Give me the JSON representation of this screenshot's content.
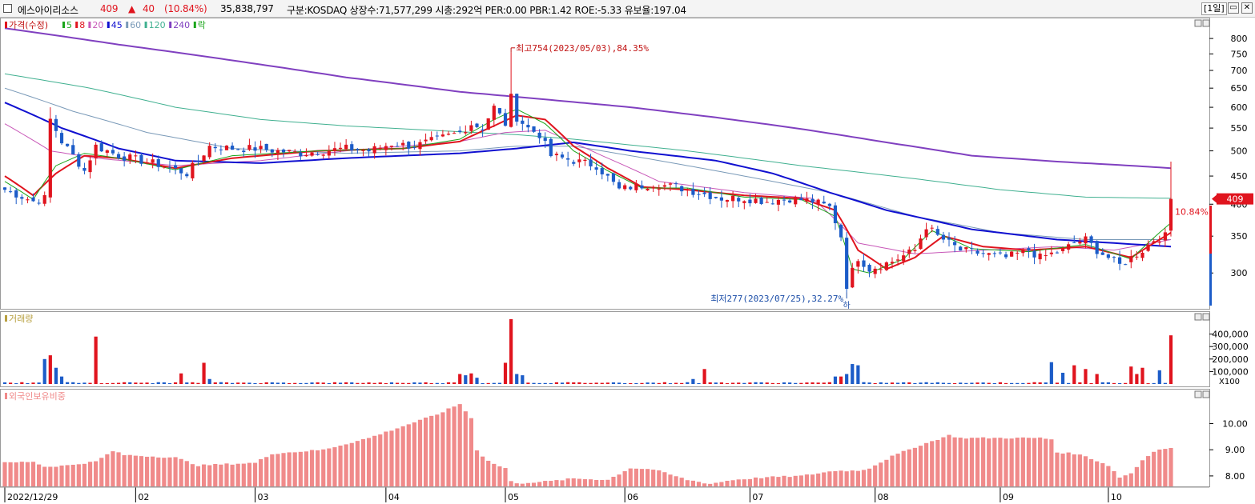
{
  "header": {
    "name": "에스아이리소스",
    "price": "409",
    "arrow": "▲",
    "change": "40",
    "change_pct": "(10.84%)",
    "volume": "35,838,797",
    "info": "구분:KOSDAQ 상장수:71,577,299 시총:292억 PER:0.00 PBR:1.42 ROE:-5.33 유보율:197.04",
    "period": "[1일]",
    "btn_restore": "▭",
    "btn_close": "✕"
  },
  "colors": {
    "up": "#e0141e",
    "down": "#1c5cc8",
    "ma5": "#1aa51a",
    "ma8": "#e0141e",
    "ma20": "#c858b8",
    "ma45": "#1010d0",
    "ma60": "#7a9ab8",
    "ma120": "#40b090",
    "ma240": "#8040c0",
    "foreign": "#f08a8a",
    "header_price": "#e0141e"
  },
  "chart_data": [
    {
      "type": "candlestick",
      "panel": "price",
      "legend": [
        {
          "label": "가격(수정)",
          "color": "#e0141e"
        },
        {
          "label": "5",
          "color": "#1aa51a"
        },
        {
          "label": "8",
          "color": "#e0141e"
        },
        {
          "label": "20",
          "color": "#c858b8"
        },
        {
          "label": "45",
          "color": "#1010d0"
        },
        {
          "label": "60",
          "color": "#7a9ab8"
        },
        {
          "label": "120",
          "color": "#40b090"
        },
        {
          "label": "240",
          "color": "#8040c0"
        },
        {
          "label": "락",
          "color": "#1aa51a"
        }
      ],
      "y_ticks": [
        300,
        350,
        400,
        450,
        500,
        550,
        600,
        650,
        700,
        750,
        800
      ],
      "y_scale": "log",
      "ylim": [
        260,
        850
      ],
      "x_ticks": [
        "2022/12/29",
        "02",
        "03",
        "04",
        "05",
        "06",
        "07",
        "08",
        "09",
        "10"
      ],
      "x_tick_index": [
        0,
        23,
        44,
        67,
        88,
        109,
        131,
        153,
        175,
        194
      ],
      "current_price": "409",
      "current_pct": "10.84%",
      "annotations": {
        "high": {
          "text": "최고754(2023/05/03),84.35%",
          "index": 89,
          "value": 754
        },
        "low": {
          "text": "최저277(2023/07/25),32.27%",
          "index": 148,
          "value": 277
        },
        "low_marker": "하"
      },
      "close_keypoints": [
        [
          0,
          425
        ],
        [
          5,
          405
        ],
        [
          7,
          410
        ],
        [
          8,
          570
        ],
        [
          10,
          520
        ],
        [
          14,
          460
        ],
        [
          16,
          510
        ],
        [
          20,
          490
        ],
        [
          24,
          480
        ],
        [
          28,
          470
        ],
        [
          32,
          455
        ],
        [
          34,
          480
        ],
        [
          36,
          510
        ],
        [
          40,
          505
        ],
        [
          44,
          505
        ],
        [
          48,
          500
        ],
        [
          52,
          495
        ],
        [
          56,
          500
        ],
        [
          60,
          505
        ],
        [
          64,
          500
        ],
        [
          68,
          515
        ],
        [
          72,
          510
        ],
        [
          76,
          525
        ],
        [
          80,
          540
        ],
        [
          82,
          560
        ],
        [
          84,
          550
        ],
        [
          86,
          600
        ],
        [
          88,
          560
        ],
        [
          89,
          625
        ],
        [
          90,
          575
        ],
        [
          92,
          550
        ],
        [
          94,
          535
        ],
        [
          96,
          490
        ],
        [
          100,
          480
        ],
        [
          104,
          470
        ],
        [
          108,
          425
        ],
        [
          110,
          430
        ],
        [
          114,
          435
        ],
        [
          118,
          430
        ],
        [
          122,
          420
        ],
        [
          126,
          410
        ],
        [
          130,
          410
        ],
        [
          134,
          405
        ],
        [
          138,
          410
        ],
        [
          142,
          405
        ],
        [
          145,
          395
        ],
        [
          147,
          350
        ],
        [
          148,
          285
        ],
        [
          150,
          320
        ],
        [
          152,
          305
        ],
        [
          156,
          315
        ],
        [
          160,
          330
        ],
        [
          162,
          365
        ],
        [
          164,
          350
        ],
        [
          168,
          330
        ],
        [
          172,
          325
        ],
        [
          176,
          320
        ],
        [
          180,
          330
        ],
        [
          182,
          320
        ],
        [
          184,
          325
        ],
        [
          186,
          330
        ],
        [
          188,
          340
        ],
        [
          190,
          345
        ],
        [
          192,
          330
        ],
        [
          194,
          320
        ],
        [
          196,
          310
        ],
        [
          198,
          320
        ],
        [
          200,
          330
        ],
        [
          202,
          345
        ],
        [
          204,
          350
        ],
        [
          205,
          409
        ]
      ],
      "ma_keypoints": {
        "ma240": [
          [
            0,
            835
          ],
          [
            20,
            780
          ],
          [
            40,
            730
          ],
          [
            60,
            680
          ],
          [
            80,
            640
          ],
          [
            95,
            620
          ],
          [
            110,
            600
          ],
          [
            125,
            575
          ],
          [
            140,
            548
          ],
          [
            155,
            518
          ],
          [
            170,
            490
          ],
          [
            185,
            478
          ],
          [
            198,
            470
          ],
          [
            205,
            465
          ]
        ],
        "ma120": [
          [
            0,
            690
          ],
          [
            15,
            650
          ],
          [
            30,
            600
          ],
          [
            45,
            570
          ],
          [
            60,
            555
          ],
          [
            75,
            545
          ],
          [
            90,
            535
          ],
          [
            100,
            525
          ],
          [
            120,
            500
          ],
          [
            140,
            470
          ],
          [
            160,
            445
          ],
          [
            175,
            425
          ],
          [
            190,
            412
          ],
          [
            205,
            410
          ]
        ],
        "ma60": [
          [
            0,
            650
          ],
          [
            12,
            590
          ],
          [
            25,
            540
          ],
          [
            40,
            505
          ],
          [
            60,
            495
          ],
          [
            80,
            500
          ],
          [
            90,
            510
          ],
          [
            100,
            510
          ],
          [
            115,
            480
          ],
          [
            130,
            450
          ],
          [
            145,
            420
          ],
          [
            160,
            380
          ],
          [
            175,
            355
          ],
          [
            190,
            345
          ],
          [
            205,
            345
          ]
        ],
        "ma45": [
          [
            0,
            612
          ],
          [
            10,
            550
          ],
          [
            20,
            505
          ],
          [
            30,
            480
          ],
          [
            45,
            475
          ],
          [
            60,
            485
          ],
          [
            80,
            495
          ],
          [
            90,
            505
          ],
          [
            100,
            518
          ],
          [
            110,
            500
          ],
          [
            125,
            480
          ],
          [
            135,
            455
          ],
          [
            145,
            420
          ],
          [
            155,
            390
          ],
          [
            170,
            360
          ],
          [
            185,
            345
          ],
          [
            195,
            340
          ],
          [
            205,
            335
          ]
        ],
        "ma20": [
          [
            0,
            560
          ],
          [
            8,
            500
          ],
          [
            16,
            485
          ],
          [
            30,
            470
          ],
          [
            45,
            480
          ],
          [
            60,
            500
          ],
          [
            80,
            520
          ],
          [
            88,
            540
          ],
          [
            95,
            545
          ],
          [
            105,
            490
          ],
          [
            115,
            440
          ],
          [
            130,
            420
          ],
          [
            142,
            410
          ],
          [
            150,
            340
          ],
          [
            160,
            325
          ],
          [
            172,
            330
          ],
          [
            185,
            335
          ],
          [
            195,
            330
          ],
          [
            205,
            345
          ]
        ],
        "ma8": [
          [
            0,
            450
          ],
          [
            5,
            415
          ],
          [
            9,
            455
          ],
          [
            14,
            490
          ],
          [
            20,
            485
          ],
          [
            30,
            465
          ],
          [
            40,
            485
          ],
          [
            55,
            500
          ],
          [
            70,
            505
          ],
          [
            80,
            520
          ],
          [
            86,
            555
          ],
          [
            90,
            580
          ],
          [
            95,
            570
          ],
          [
            100,
            510
          ],
          [
            106,
            465
          ],
          [
            112,
            430
          ],
          [
            120,
            425
          ],
          [
            130,
            415
          ],
          [
            140,
            410
          ],
          [
            146,
            390
          ],
          [
            150,
            330
          ],
          [
            155,
            305
          ],
          [
            160,
            320
          ],
          [
            165,
            350
          ],
          [
            172,
            335
          ],
          [
            180,
            330
          ],
          [
            190,
            335
          ],
          [
            198,
            320
          ],
          [
            205,
            355
          ]
        ],
        "ma5": [
          [
            0,
            440
          ],
          [
            5,
            408
          ],
          [
            9,
            470
          ],
          [
            14,
            495
          ],
          [
            20,
            485
          ],
          [
            30,
            462
          ],
          [
            40,
            490
          ],
          [
            55,
            500
          ],
          [
            70,
            505
          ],
          [
            80,
            525
          ],
          [
            86,
            570
          ],
          [
            90,
            595
          ],
          [
            95,
            560
          ],
          [
            100,
            500
          ],
          [
            106,
            460
          ],
          [
            112,
            428
          ],
          [
            120,
            428
          ],
          [
            130,
            412
          ],
          [
            140,
            408
          ],
          [
            146,
            380
          ],
          [
            149,
            305
          ],
          [
            152,
            300
          ],
          [
            158,
            318
          ],
          [
            163,
            358
          ],
          [
            170,
            332
          ],
          [
            180,
            328
          ],
          [
            190,
            338
          ],
          [
            198,
            318
          ],
          [
            205,
            370
          ]
        ]
      }
    },
    {
      "type": "bar",
      "panel": "volume",
      "title": "거래량",
      "y_ticks": [
        100000,
        200000,
        300000,
        400000
      ],
      "y_tick_labels": [
        "100,000",
        "200,000",
        "300,000",
        "400,000"
      ],
      "y_unit": "X100",
      "ylim": [
        0,
        500000
      ],
      "spikes": [
        [
          7,
          200000,
          "down"
        ],
        [
          8,
          230000,
          "up"
        ],
        [
          9,
          130000,
          "down"
        ],
        [
          10,
          60000,
          "down"
        ],
        [
          16,
          380000,
          "up"
        ],
        [
          31,
          85000,
          "up"
        ],
        [
          35,
          170000,
          "up"
        ],
        [
          36,
          40000,
          "down"
        ],
        [
          80,
          80000,
          "up"
        ],
        [
          81,
          70000,
          "down"
        ],
        [
          82,
          85000,
          "up"
        ],
        [
          83,
          50000,
          "down"
        ],
        [
          88,
          170000,
          "up"
        ],
        [
          89,
          520000,
          "up"
        ],
        [
          90,
          80000,
          "down"
        ],
        [
          91,
          70000,
          "down"
        ],
        [
          121,
          40000,
          "down"
        ],
        [
          123,
          120000,
          "up"
        ],
        [
          146,
          60000,
          "down"
        ],
        [
          147,
          60000,
          "up"
        ],
        [
          148,
          80000,
          "down"
        ],
        [
          149,
          160000,
          "down"
        ],
        [
          150,
          150000,
          "down"
        ],
        [
          184,
          175000,
          "down"
        ],
        [
          186,
          90000,
          "down"
        ],
        [
          188,
          150000,
          "up"
        ],
        [
          190,
          120000,
          "up"
        ],
        [
          192,
          80000,
          "up"
        ],
        [
          198,
          140000,
          "up"
        ],
        [
          199,
          80000,
          "up"
        ],
        [
          200,
          130000,
          "up"
        ],
        [
          203,
          110000,
          "down"
        ],
        [
          205,
          390000,
          "up"
        ]
      ]
    },
    {
      "type": "bar",
      "panel": "foreign",
      "title": "외국인보유비중",
      "y_ticks": [
        8.0,
        9.0,
        10.0
      ],
      "y_tick_labels": [
        "8.00",
        "9.00",
        "10.00"
      ],
      "ylim": [
        7.6,
        10.9
      ],
      "keypoints": [
        [
          0,
          8.5
        ],
        [
          5,
          8.55
        ],
        [
          7,
          8.35
        ],
        [
          11,
          8.4
        ],
        [
          16,
          8.55
        ],
        [
          19,
          8.95
        ],
        [
          21,
          8.8
        ],
        [
          30,
          8.7
        ],
        [
          34,
          8.4
        ],
        [
          44,
          8.5
        ],
        [
          47,
          8.85
        ],
        [
          56,
          9.0
        ],
        [
          64,
          9.45
        ],
        [
          70,
          9.9
        ],
        [
          76,
          10.35
        ],
        [
          80,
          10.75
        ],
        [
          82,
          10.2
        ],
        [
          83,
          9.0
        ],
        [
          84,
          8.75
        ],
        [
          86,
          8.45
        ],
        [
          88,
          8.3
        ],
        [
          89,
          7.8
        ],
        [
          90,
          7.7
        ],
        [
          92,
          7.75
        ],
        [
          96,
          7.8
        ],
        [
          100,
          7.9
        ],
        [
          106,
          7.85
        ],
        [
          110,
          8.3
        ],
        [
          114,
          8.25
        ],
        [
          120,
          7.85
        ],
        [
          124,
          7.7
        ],
        [
          128,
          7.85
        ],
        [
          134,
          7.95
        ],
        [
          140,
          8.0
        ],
        [
          146,
          8.2
        ],
        [
          150,
          8.2
        ],
        [
          152,
          8.3
        ],
        [
          156,
          8.75
        ],
        [
          160,
          9.1
        ],
        [
          164,
          9.4
        ],
        [
          166,
          9.55
        ],
        [
          168,
          9.45
        ],
        [
          174,
          9.45
        ],
        [
          182,
          9.45
        ],
        [
          184,
          9.4
        ],
        [
          185,
          8.9
        ],
        [
          188,
          8.85
        ],
        [
          190,
          8.75
        ],
        [
          194,
          8.4
        ],
        [
          196,
          7.95
        ],
        [
          198,
          8.1
        ],
        [
          200,
          8.6
        ],
        [
          202,
          8.95
        ],
        [
          204,
          9.05
        ],
        [
          205,
          9.05
        ]
      ]
    }
  ]
}
